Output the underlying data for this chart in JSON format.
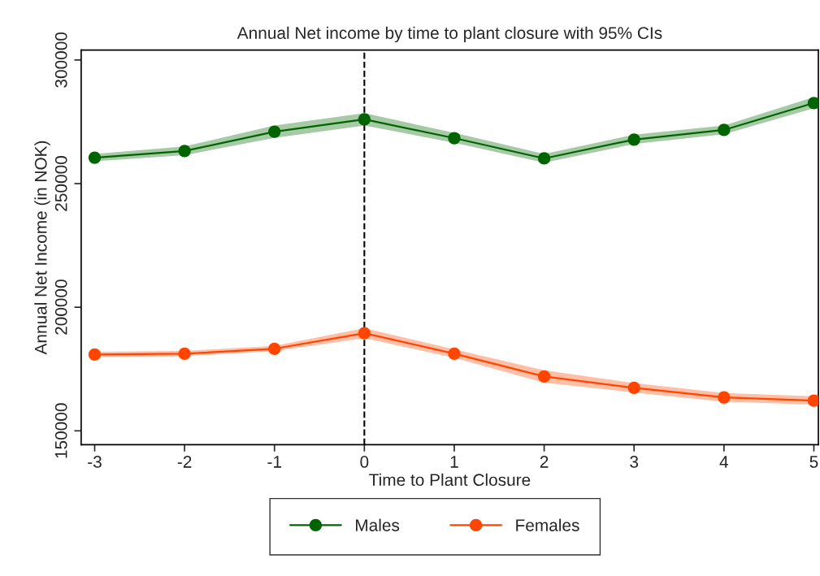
{
  "chart_data": {
    "type": "line",
    "title": "Annual Net income by time to plant closure with 95% CIs",
    "xlabel": "Time to Plant Closure",
    "ylabel": "Annual Net Income (in NOK)",
    "x": [
      -3,
      -2,
      -1,
      0,
      1,
      2,
      3,
      4,
      5
    ],
    "series": [
      {
        "name": "Males",
        "color": "#006400",
        "values": [
          260500,
          263200,
          271000,
          276000,
          268400,
          260200,
          267800,
          271700,
          282600
        ],
        "lower": [
          259000,
          261500,
          268500,
          273500,
          266500,
          258500,
          266000,
          270000,
          280500
        ],
        "upper": [
          262000,
          265000,
          273500,
          278500,
          270500,
          262000,
          269800,
          273500,
          285000
        ]
      },
      {
        "name": "Females",
        "color": "#ff4500",
        "values": [
          180900,
          181200,
          183200,
          189500,
          181200,
          172000,
          167400,
          163500,
          162200
        ],
        "lower": [
          179800,
          180200,
          182200,
          187500,
          179500,
          169500,
          165500,
          161800,
          160600
        ],
        "upper": [
          182000,
          182300,
          184400,
          191500,
          183000,
          174500,
          169300,
          165300,
          164000
        ]
      }
    ],
    "marker": "circle",
    "line_style": "solid",
    "grid": false,
    "legend": "bottom",
    "xlim": [
      -3.15,
      5.05
    ],
    "xticks": [
      -3,
      -2,
      -1,
      0,
      1,
      2,
      3,
      4,
      5
    ],
    "ylim": [
      144400,
      304000
    ],
    "yticks": [
      150000,
      200000,
      250000,
      300000
    ],
    "ref_lines": [
      {
        "axis": "x",
        "value": 0,
        "label": null,
        "color": "#000000",
        "line_style": "dashed"
      }
    ]
  }
}
